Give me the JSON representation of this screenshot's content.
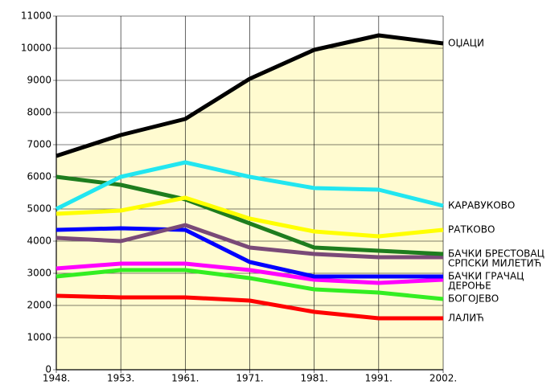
{
  "chart_data": {
    "type": "line",
    "categories": [
      "1948.",
      "1953.",
      "1961.",
      "1971.",
      "1981.",
      "1991.",
      "2002."
    ],
    "ylim": [
      0,
      11000
    ],
    "yticks": [
      0,
      1000,
      2000,
      3000,
      4000,
      5000,
      6000,
      7000,
      8000,
      9000,
      10000,
      11000
    ],
    "grid": true,
    "series": [
      {
        "name": "ОЏАЦИ",
        "color": "#000000",
        "values": [
          6650,
          7300,
          7800,
          9050,
          9950,
          10400,
          10150
        ]
      },
      {
        "name": "КАРАВУКОВО",
        "color": "#22e6f0",
        "values": [
          5000,
          6000,
          6450,
          6000,
          5650,
          5600,
          5100
        ]
      },
      {
        "name": "РАТКОВО",
        "color": "#ffff00",
        "values": [
          4850,
          4950,
          5350,
          4700,
          4300,
          4150,
          4350
        ]
      },
      {
        "name": "БАЧКИ БРЕСТОВАЦ",
        "color": "#1e7d1e",
        "values": [
          6000,
          5750,
          5300,
          4550,
          3800,
          3700,
          3600
        ]
      },
      {
        "name": "СРПСКИ МИЛЕТИЋ",
        "color": "#7a4a78",
        "values": [
          4100,
          4000,
          4500,
          3800,
          3600,
          3500,
          3500
        ]
      },
      {
        "name": "БАЧКИ ГРАЧАЦ",
        "color": "#0000ff",
        "values": [
          4350,
          4400,
          4350,
          3350,
          2900,
          2900,
          2900
        ]
      },
      {
        "name": "ДЕРОЊЕ",
        "color": "#ff00ff",
        "values": [
          3150,
          3300,
          3300,
          3100,
          2800,
          2700,
          2800
        ]
      },
      {
        "name": "БОГОЈЕВО",
        "color": "#33ee22",
        "values": [
          2900,
          3100,
          3100,
          2850,
          2500,
          2400,
          2200
        ]
      },
      {
        "name": "ЛАЛИЋ",
        "color": "#ff0000",
        "values": [
          2300,
          2250,
          2250,
          2150,
          1800,
          1600,
          1600
        ]
      }
    ]
  }
}
